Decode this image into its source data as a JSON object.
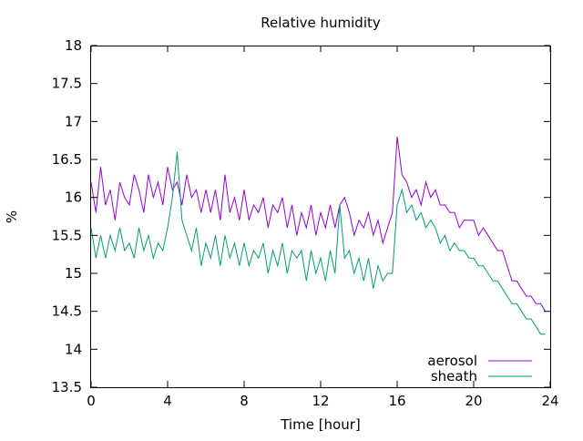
{
  "chart_data": {
    "type": "line",
    "title": "Relative humidity",
    "xlabel": "Time [hour]",
    "ylabel": "%",
    "xlim": [
      0,
      24
    ],
    "ylim": [
      13.5,
      18
    ],
    "x_ticks": [
      0,
      4,
      8,
      12,
      16,
      20,
      24
    ],
    "y_ticks": [
      13.5,
      14,
      14.5,
      15,
      15.5,
      16,
      16.5,
      17,
      17.5,
      18
    ],
    "grid": false,
    "legend_position": "bottom-right",
    "series": [
      {
        "name": "aerosol",
        "color": "#9400d3",
        "x": [
          0,
          0.25,
          0.5,
          0.75,
          1,
          1.25,
          1.5,
          1.75,
          2,
          2.25,
          2.5,
          2.75,
          3,
          3.25,
          3.5,
          3.75,
          4,
          4.25,
          4.5,
          4.75,
          5,
          5.25,
          5.5,
          5.75,
          6,
          6.25,
          6.5,
          6.75,
          7,
          7.25,
          7.5,
          7.75,
          8,
          8.25,
          8.5,
          8.75,
          9,
          9.25,
          9.5,
          9.75,
          10,
          10.25,
          10.5,
          10.75,
          11,
          11.25,
          11.5,
          11.75,
          12,
          12.25,
          12.5,
          12.75,
          13,
          13.25,
          13.5,
          13.75,
          14,
          14.25,
          14.5,
          14.75,
          15,
          15.25,
          15.5,
          15.75,
          16,
          16.25,
          16.5,
          16.75,
          17,
          17.25,
          17.5,
          17.75,
          18,
          18.25,
          18.5,
          18.75,
          19,
          19.25,
          19.5,
          19.75,
          20,
          20.25,
          20.5,
          20.75,
          21,
          21.25,
          21.5,
          21.75,
          22,
          22.25,
          22.5,
          22.75,
          23,
          23.25,
          23.5,
          23.75
        ],
        "values": [
          16.2,
          15.8,
          16.4,
          15.9,
          16.1,
          15.7,
          16.2,
          16.0,
          15.9,
          16.3,
          16.1,
          15.8,
          16.3,
          16.0,
          16.2,
          15.9,
          16.4,
          16.1,
          16.2,
          15.9,
          16.3,
          16.0,
          16.1,
          15.8,
          16.1,
          15.8,
          16.1,
          15.7,
          16.3,
          15.8,
          16.0,
          15.7,
          16.1,
          15.7,
          15.9,
          15.8,
          16.0,
          15.6,
          15.9,
          15.8,
          16.0,
          15.6,
          15.9,
          15.5,
          15.8,
          15.6,
          15.9,
          15.5,
          15.8,
          15.6,
          15.9,
          15.6,
          15.9,
          16.0,
          15.8,
          15.5,
          15.7,
          15.6,
          15.8,
          15.5,
          15.7,
          15.4,
          15.6,
          15.8,
          16.8,
          16.3,
          16.2,
          16.0,
          16.1,
          15.9,
          16.2,
          16.0,
          16.1,
          15.9,
          15.9,
          15.8,
          15.8,
          15.6,
          15.7,
          15.7,
          15.7,
          15.5,
          15.6,
          15.5,
          15.4,
          15.3,
          15.3,
          15.1,
          14.9,
          14.9,
          14.8,
          14.7,
          14.7,
          14.6,
          14.6,
          14.5
        ]
      },
      {
        "name": "sheath",
        "color": "#009e73",
        "x": [
          0,
          0.25,
          0.5,
          0.75,
          1,
          1.25,
          1.5,
          1.75,
          2,
          2.25,
          2.5,
          2.75,
          3,
          3.25,
          3.5,
          3.75,
          4,
          4.25,
          4.5,
          4.75,
          5,
          5.25,
          5.5,
          5.75,
          6,
          6.25,
          6.5,
          6.75,
          7,
          7.25,
          7.5,
          7.75,
          8,
          8.25,
          8.5,
          8.75,
          9,
          9.25,
          9.5,
          9.75,
          10,
          10.25,
          10.5,
          10.75,
          11,
          11.25,
          11.5,
          11.75,
          12,
          12.25,
          12.5,
          12.75,
          13,
          13.25,
          13.5,
          13.75,
          14,
          14.25,
          14.5,
          14.75,
          15,
          15.25,
          15.5,
          15.75,
          16,
          16.25,
          16.5,
          16.75,
          17,
          17.25,
          17.5,
          17.75,
          18,
          18.25,
          18.5,
          18.75,
          19,
          19.25,
          19.5,
          19.75,
          20,
          20.25,
          20.5,
          20.75,
          21,
          21.25,
          21.5,
          21.75,
          22,
          22.25,
          22.5,
          22.75,
          23,
          23.25,
          23.5,
          23.75
        ],
        "values": [
          15.6,
          15.2,
          15.5,
          15.2,
          15.5,
          15.3,
          15.6,
          15.3,
          15.4,
          15.2,
          15.6,
          15.3,
          15.5,
          15.2,
          15.4,
          15.3,
          15.6,
          16.0,
          16.6,
          15.7,
          15.5,
          15.3,
          15.6,
          15.1,
          15.4,
          15.2,
          15.5,
          15.1,
          15.5,
          15.2,
          15.4,
          15.1,
          15.4,
          15.1,
          15.3,
          15.2,
          15.4,
          15.0,
          15.3,
          15.1,
          15.4,
          15.0,
          15.3,
          15.2,
          15.3,
          14.9,
          15.3,
          15.0,
          15.2,
          14.9,
          15.3,
          15.0,
          15.9,
          15.2,
          15.3,
          15.0,
          15.2,
          14.9,
          15.2,
          14.8,
          15.1,
          14.9,
          15.0,
          15.0,
          15.9,
          16.1,
          15.8,
          15.9,
          15.7,
          15.8,
          15.6,
          15.7,
          15.6,
          15.4,
          15.5,
          15.3,
          15.4,
          15.3,
          15.3,
          15.2,
          15.2,
          15.1,
          15.1,
          15.0,
          14.9,
          14.9,
          14.8,
          14.7,
          14.6,
          14.6,
          14.5,
          14.4,
          14.4,
          14.3,
          14.2,
          14.2
        ]
      }
    ]
  }
}
